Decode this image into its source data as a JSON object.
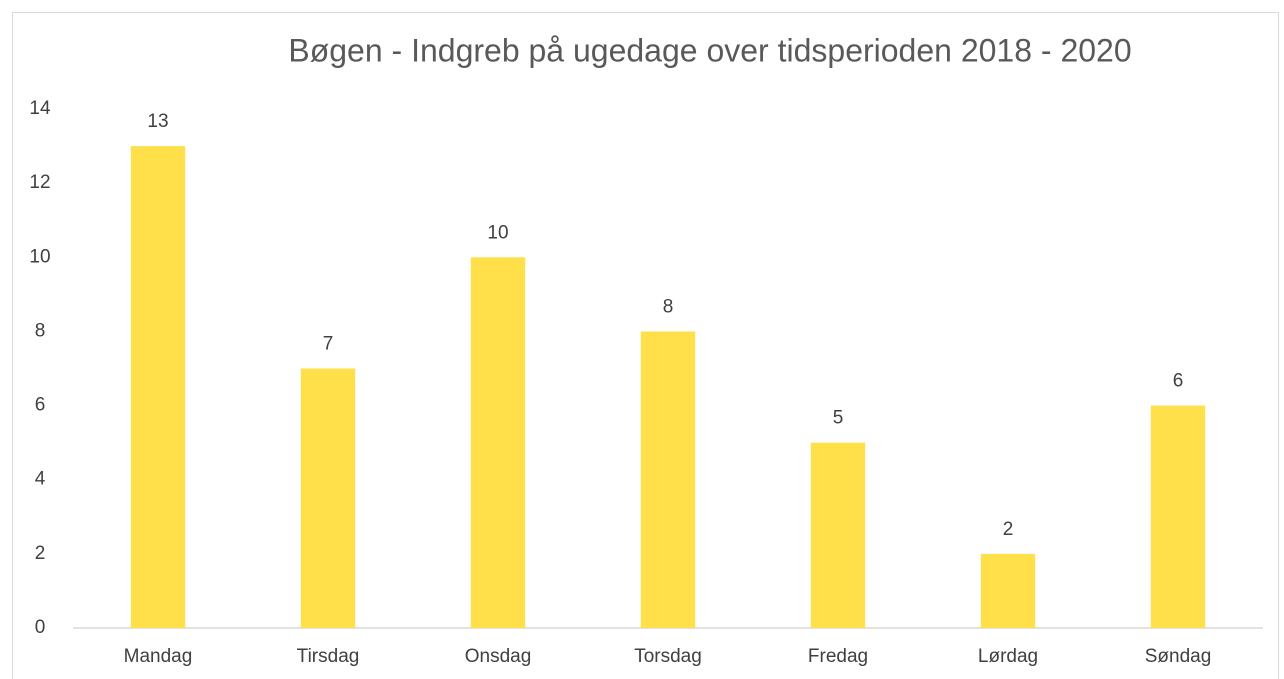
{
  "chart_data": {
    "type": "bar",
    "title": "Bøgen - Indgreb på ugedage over tidsperioden 2018 - 2020",
    "categories": [
      "Mandag",
      "Tirsdag",
      "Onsdag",
      "Torsdag",
      "Fredag",
      "Lørdag",
      "Søndag"
    ],
    "values": [
      13,
      7,
      10,
      8,
      5,
      2,
      6
    ],
    "color": "#ffe04b",
    "ylim": [
      0,
      14
    ],
    "yticks": [
      0,
      2,
      4,
      6,
      8,
      10,
      12,
      14
    ],
    "grid": false
  }
}
